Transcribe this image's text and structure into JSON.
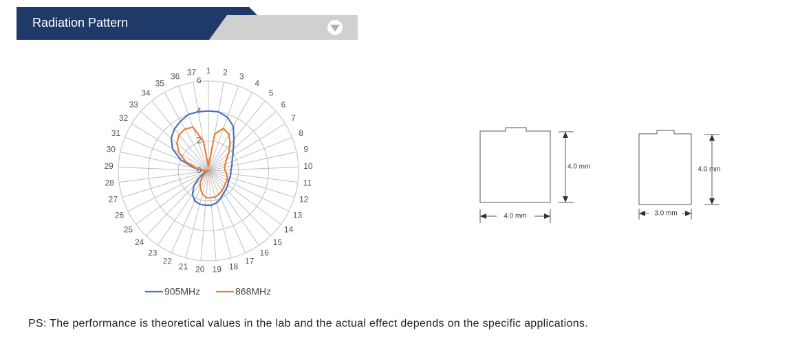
{
  "header": {
    "title": "Radiation Pattern"
  },
  "chart_data": {
    "type": "radar",
    "categories": [
      "1",
      "2",
      "3",
      "4",
      "5",
      "6",
      "7",
      "8",
      "9",
      "10",
      "11",
      "12",
      "13",
      "14",
      "15",
      "16",
      "17",
      "18",
      "19",
      "20",
      "21",
      "22",
      "23",
      "24",
      "25",
      "26",
      "27",
      "28",
      "29",
      "30",
      "31",
      "32",
      "33",
      "34",
      "35",
      "36",
      "37"
    ],
    "rlim": [
      0,
      6
    ],
    "rticks": [
      0,
      2,
      4,
      6
    ],
    "grid": true,
    "legend": "bottom",
    "series": [
      {
        "name": "905MHz",
        "color": "#4472c4",
        "values": [
          4.0,
          4.0,
          3.8,
          3.4,
          2.7,
          2.2,
          1.9,
          1.7,
          1.6,
          1.5,
          1.5,
          1.5,
          1.5,
          1.6,
          1.7,
          1.8,
          2.0,
          2.2,
          2.3,
          2.3,
          2.3,
          2.2,
          1.9,
          1.4,
          0.8,
          0.3,
          0.1,
          0.0,
          0.3,
          1.0,
          2.0,
          2.8,
          3.3,
          3.6,
          3.8,
          4.0,
          4.0
        ]
      },
      {
        "name": "868MHz",
        "color": "#ed7d31",
        "values": [
          0.3,
          2.5,
          3.0,
          2.8,
          2.3,
          1.8,
          1.4,
          1.2,
          1.1,
          1.1,
          1.2,
          1.3,
          1.4,
          1.4,
          1.5,
          1.6,
          1.7,
          1.8,
          1.8,
          1.8,
          1.6,
          1.3,
          1.0,
          0.6,
          0.3,
          0.1,
          0.0,
          0.0,
          0.2,
          0.8,
          1.6,
          2.3,
          2.8,
          3.1,
          3.2,
          3.1,
          2.0
        ]
      }
    ]
  },
  "dimensions": [
    {
      "width_label": "4.0 mm",
      "height_label": "4.0 mm"
    },
    {
      "width_label": "3.0 mm",
      "height_label": "4.0 mm"
    }
  ],
  "note": "PS: The performance is theoretical values in the lab and the actual effect depends on the specific applications."
}
